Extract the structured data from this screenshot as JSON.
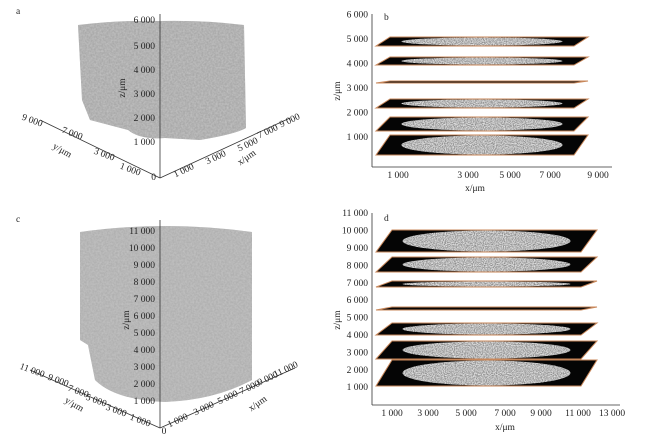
{
  "panels": [
    {
      "label": "a",
      "origin": "0",
      "z_axis": {
        "title": "z/μm",
        "ticks": [
          "1 000",
          "2 000",
          "3 000",
          "4 000",
          "5 000",
          "6 000"
        ]
      },
      "x_axis": {
        "title": "x/μm",
        "ticks": [
          "1 000",
          "3 000",
          "5 000",
          "7 000",
          "9 000"
        ]
      },
      "y_axis": {
        "title": "y/μm",
        "ticks": [
          "1 000",
          "3 000",
          "7 000",
          "9 000"
        ]
      }
    },
    {
      "label": "b",
      "z_axis": {
        "title": "z/μm",
        "ticks": [
          "1 000",
          "2 000",
          "3 000",
          "4 000",
          "5 000",
          "6 000"
        ]
      },
      "x_axis": {
        "title": "x/μm",
        "ticks": [
          "1 000",
          "3 000",
          "5 000",
          "7 000",
          "9 000"
        ]
      }
    },
    {
      "label": "c",
      "origin": "0",
      "z_axis": {
        "title": "z/μm",
        "ticks": [
          "1 000",
          "2 000",
          "3 000",
          "4 000",
          "5 000",
          "6 000",
          "7 000",
          "8 000",
          "9 000",
          "10 000",
          "11 000"
        ]
      },
      "x_axis": {
        "title": "x/μm",
        "ticks": [
          "1 000",
          "3 000",
          "5 000",
          "7 000",
          "9 000",
          "11 000"
        ]
      },
      "y_axis": {
        "title": "y/μm",
        "ticks": [
          "1 000",
          "3 000",
          "5 000",
          "7 000",
          "9 000",
          "11 000"
        ]
      }
    },
    {
      "label": "d",
      "z_axis": {
        "title": "z/μm",
        "ticks": [
          "1 000",
          "2 000",
          "3 000",
          "4 000",
          "5 000",
          "6 000",
          "7 000",
          "8 000",
          "9 000",
          "10 000",
          "11 000"
        ]
      },
      "x_axis": {
        "title": "x/μm",
        "ticks": [
          "1 000",
          "3 000",
          "5 000",
          "7 000",
          "9 000",
          "11 000",
          "13 000"
        ]
      }
    }
  ]
}
